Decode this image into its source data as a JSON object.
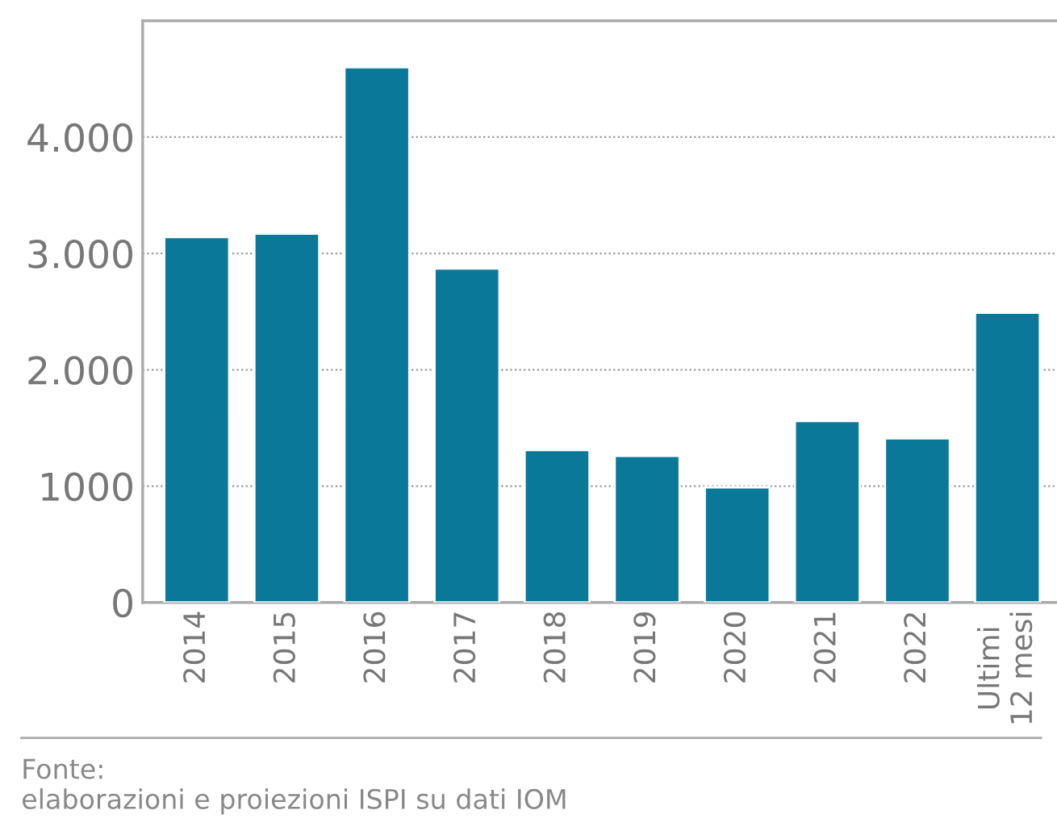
{
  "chart_data": {
    "type": "bar",
    "categories": [
      "2014",
      "2015",
      "2016",
      "2017",
      "2018",
      "2019",
      "2020",
      "2021",
      "2022",
      "Ultimi\n12 mesi"
    ],
    "values": [
      3140,
      3170,
      4600,
      2870,
      1310,
      1260,
      990,
      1560,
      1410,
      2490
    ],
    "color": "#0a7899",
    "ylim": [
      0,
      5000
    ],
    "yticks": [
      0,
      1000,
      {
        "value": 2000,
        "label": "2.000"
      },
      {
        "value": 3000,
        "label": "3.000"
      },
      {
        "value": 4000,
        "label": "4.000"
      }
    ],
    "grid": "y",
    "annotations": [
      "Fonte:\nelaborazioni e proiezioni ISPI su dati IOM"
    ]
  }
}
